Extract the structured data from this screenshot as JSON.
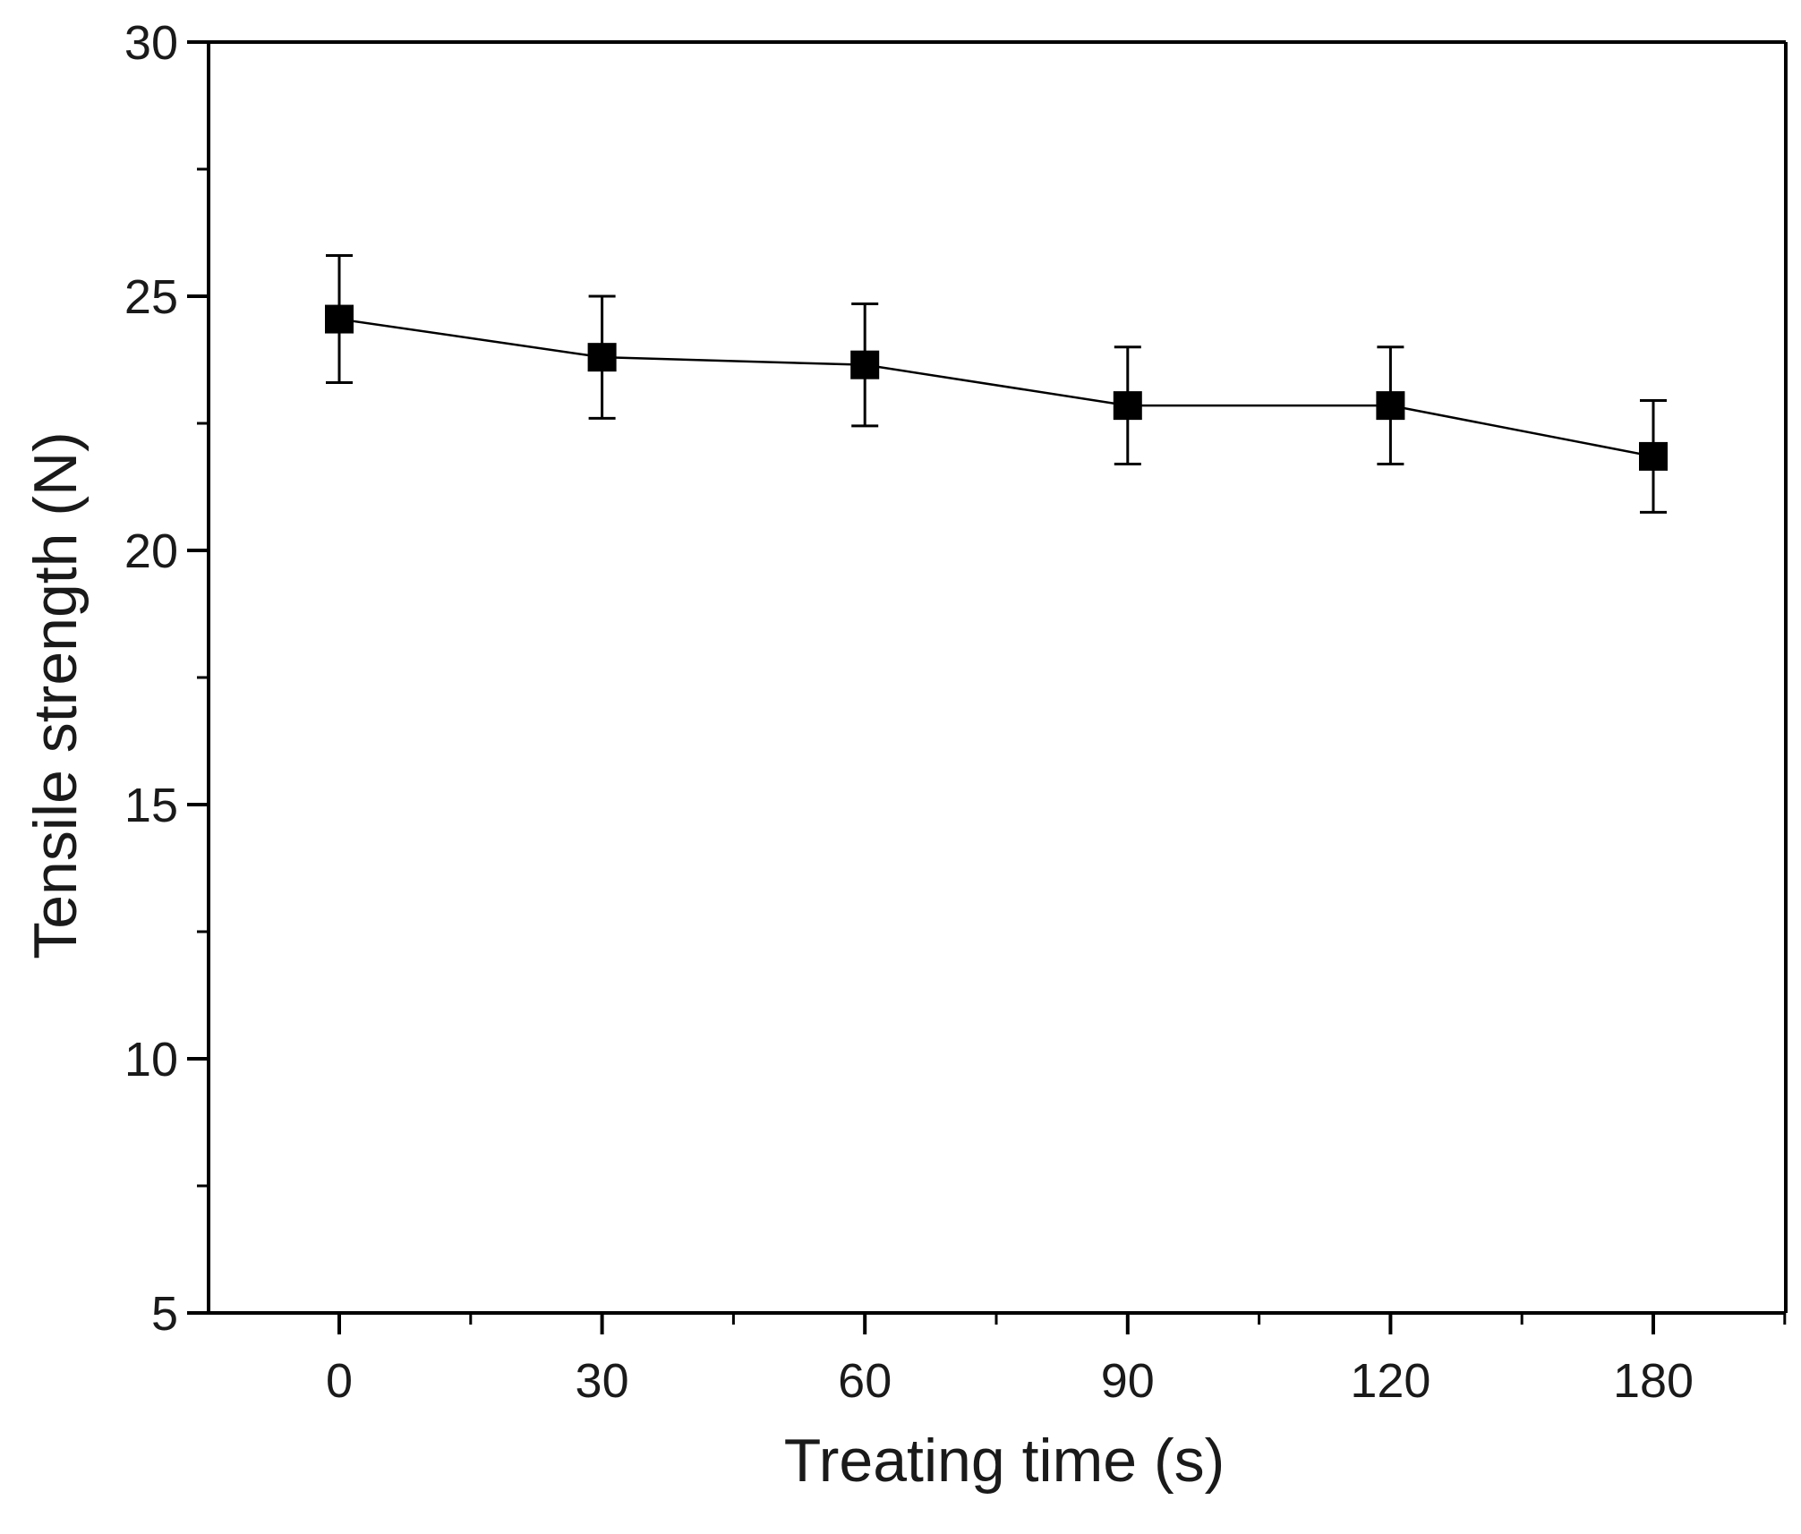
{
  "chart_data": {
    "type": "line",
    "title": "",
    "xlabel": "Treating time (s)",
    "ylabel": "Tensile strength (N)",
    "categories": [
      "0",
      "30",
      "60",
      "90",
      "120",
      "180"
    ],
    "ylim": [
      5,
      30
    ],
    "yticks": [
      5,
      10,
      15,
      20,
      25,
      30
    ],
    "y_minor_step": 2.5,
    "grid": false,
    "legend": "none",
    "marker": "square",
    "series": [
      {
        "values": [
          24.55,
          23.8,
          23.65,
          22.85,
          22.85,
          21.85
        ],
        "error": [
          1.25,
          1.2,
          1.2,
          1.15,
          1.15,
          1.1
        ]
      }
    ],
    "colors": {
      "marker": "#000000",
      "line": "#000000",
      "error_bar": "#000000",
      "axis": "#000000"
    }
  }
}
